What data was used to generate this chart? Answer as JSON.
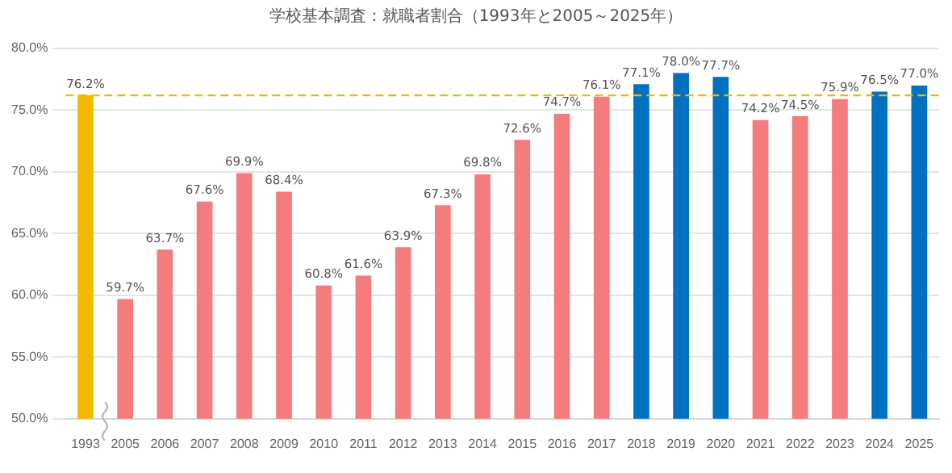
{
  "chart_data": {
    "type": "bar",
    "title": "学校基本調査：就職者割合（1993年と2005～2025年）",
    "categories": [
      "1993",
      "2005",
      "2006",
      "2007",
      "2008",
      "2009",
      "2010",
      "2011",
      "2012",
      "2013",
      "2014",
      "2015",
      "2016",
      "2017",
      "2018",
      "2019",
      "2020",
      "2021",
      "2022",
      "2023",
      "2024",
      "2025"
    ],
    "values": [
      76.2,
      59.7,
      63.7,
      67.6,
      69.9,
      68.4,
      60.8,
      61.6,
      63.9,
      67.3,
      69.8,
      72.6,
      74.7,
      76.1,
      77.1,
      78.0,
      77.7,
      74.2,
      74.5,
      75.9,
      76.5,
      77.0
    ],
    "colors": [
      "#f5b800",
      "#f47c7c",
      "#f47c7c",
      "#f47c7c",
      "#f47c7c",
      "#f47c7c",
      "#f47c7c",
      "#f47c7c",
      "#f47c7c",
      "#f47c7c",
      "#f47c7c",
      "#f47c7c",
      "#f47c7c",
      "#f47c7c",
      "#0070c0",
      "#0070c0",
      "#0070c0",
      "#f47c7c",
      "#f47c7c",
      "#f47c7c",
      "#0070c0",
      "#0070c0"
    ],
    "value_labels": [
      "76.2%",
      "59.7%",
      "63.7%",
      "67.6%",
      "69.9%",
      "68.4%",
      "60.8%",
      "61.6%",
      "63.9%",
      "67.3%",
      "69.8%",
      "72.6%",
      "74.7%",
      "76.1%",
      "77.1%",
      "78.0%",
      "77.7%",
      "74.2%",
      "74.5%",
      "75.9%",
      "76.5%",
      "77.0%"
    ],
    "ylim": [
      50,
      80
    ],
    "yticks": [
      {
        "value": 50,
        "label": "50.0%"
      },
      {
        "value": 55,
        "label": "55.0%"
      },
      {
        "value": 60,
        "label": "60.0%"
      },
      {
        "value": 65,
        "label": "65.0%"
      },
      {
        "value": 70,
        "label": "70.0%"
      },
      {
        "value": 75,
        "label": "75.0%"
      },
      {
        "value": 80,
        "label": "80.0%"
      }
    ],
    "ref_lines": [
      {
        "axis": "y",
        "value": 76.2,
        "color": "#f5b800",
        "line_style": "dashed"
      }
    ],
    "grid": "y",
    "legend": false
  }
}
